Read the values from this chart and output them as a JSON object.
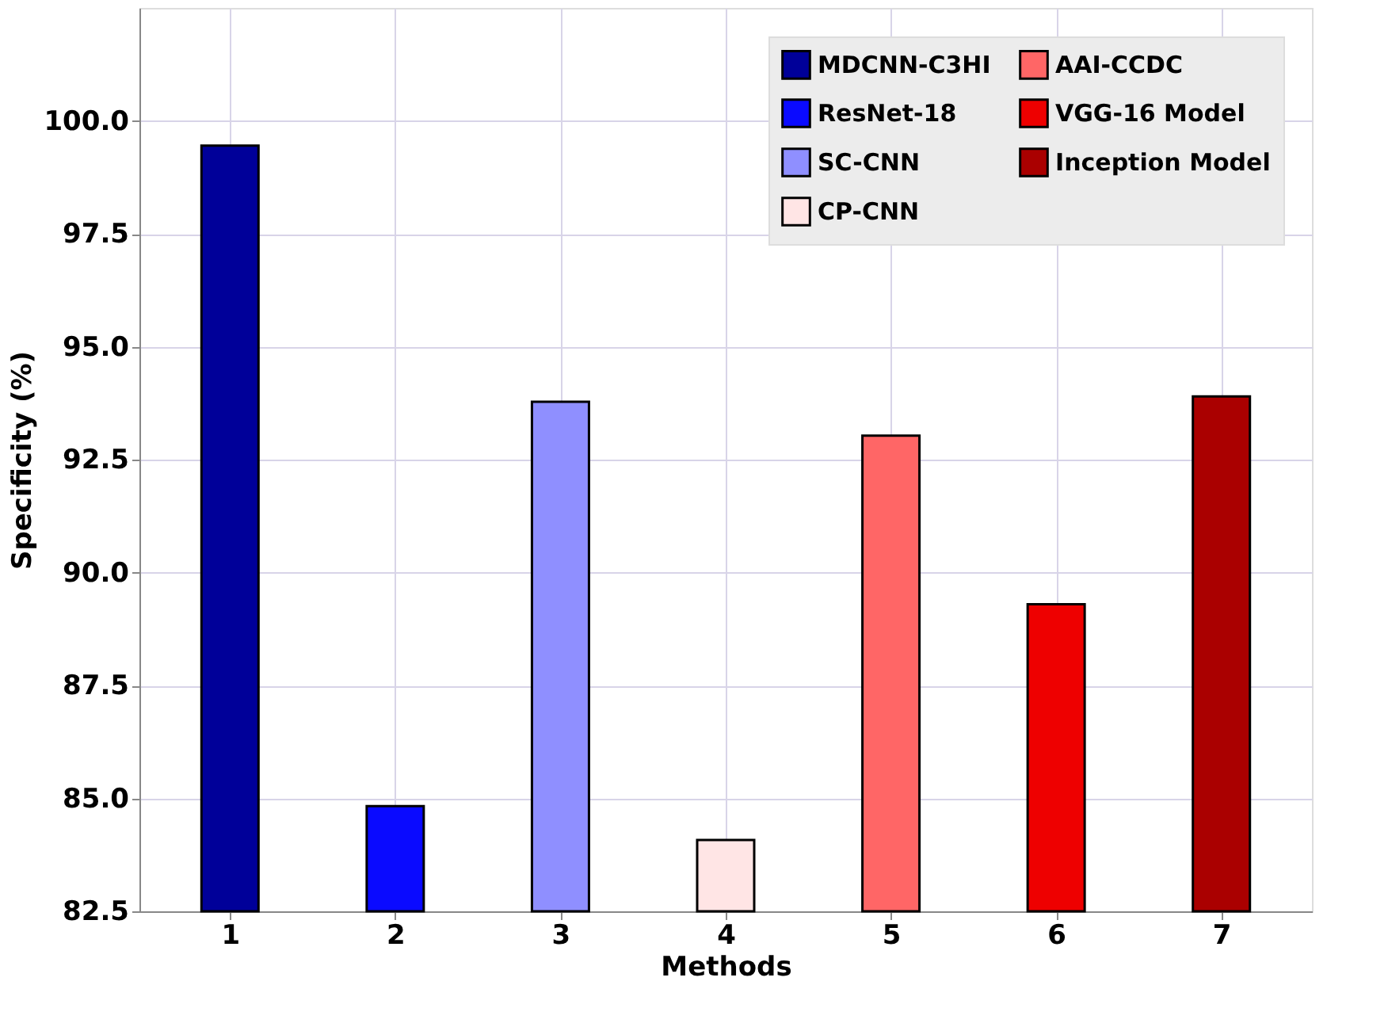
{
  "chart_data": {
    "type": "bar",
    "xlabel": "Methods",
    "ylabel": "Specificity (%)",
    "categories": [
      "1",
      "2",
      "3",
      "4",
      "5",
      "6",
      "7"
    ],
    "series": [
      {
        "name": "MDCNN-C3HI",
        "color": "#000099",
        "values": [
          99.45,
          null,
          null,
          null,
          null,
          null,
          null
        ]
      },
      {
        "name": "ResNet-18",
        "color": "#0a0aff",
        "values": [
          null,
          84.83,
          null,
          null,
          null,
          null,
          null
        ]
      },
      {
        "name": "SC-CNN",
        "color": "#8f8fff",
        "values": [
          null,
          null,
          93.78,
          null,
          null,
          null,
          null
        ]
      },
      {
        "name": "CP-CNN",
        "color": "#ffe5e5",
        "values": [
          null,
          null,
          null,
          84.08,
          null,
          null,
          null
        ]
      },
      {
        "name": "AAI-CCDC",
        "color": "#ff6666",
        "values": [
          null,
          null,
          null,
          null,
          93.03,
          null,
          null
        ]
      },
      {
        "name": "VGG-16 Model",
        "color": "#ee0000",
        "values": [
          null,
          null,
          null,
          null,
          null,
          89.3,
          null
        ]
      },
      {
        "name": "Inception Model",
        "color": "#aa0000",
        "values": [
          null,
          null,
          null,
          null,
          null,
          null,
          93.9
        ]
      }
    ],
    "ylim": [
      82.5,
      102.5
    ],
    "yticks": [
      82.5,
      {
        "value": 85,
        "label": "85.0"
      },
      87.5,
      {
        "value": 90,
        "label": "90.0"
      },
      92.5,
      {
        "value": 95,
        "label": "95.0"
      },
      97.5,
      {
        "value": 100,
        "label": "100.0"
      }
    ],
    "grid": true,
    "legend": "top right"
  }
}
